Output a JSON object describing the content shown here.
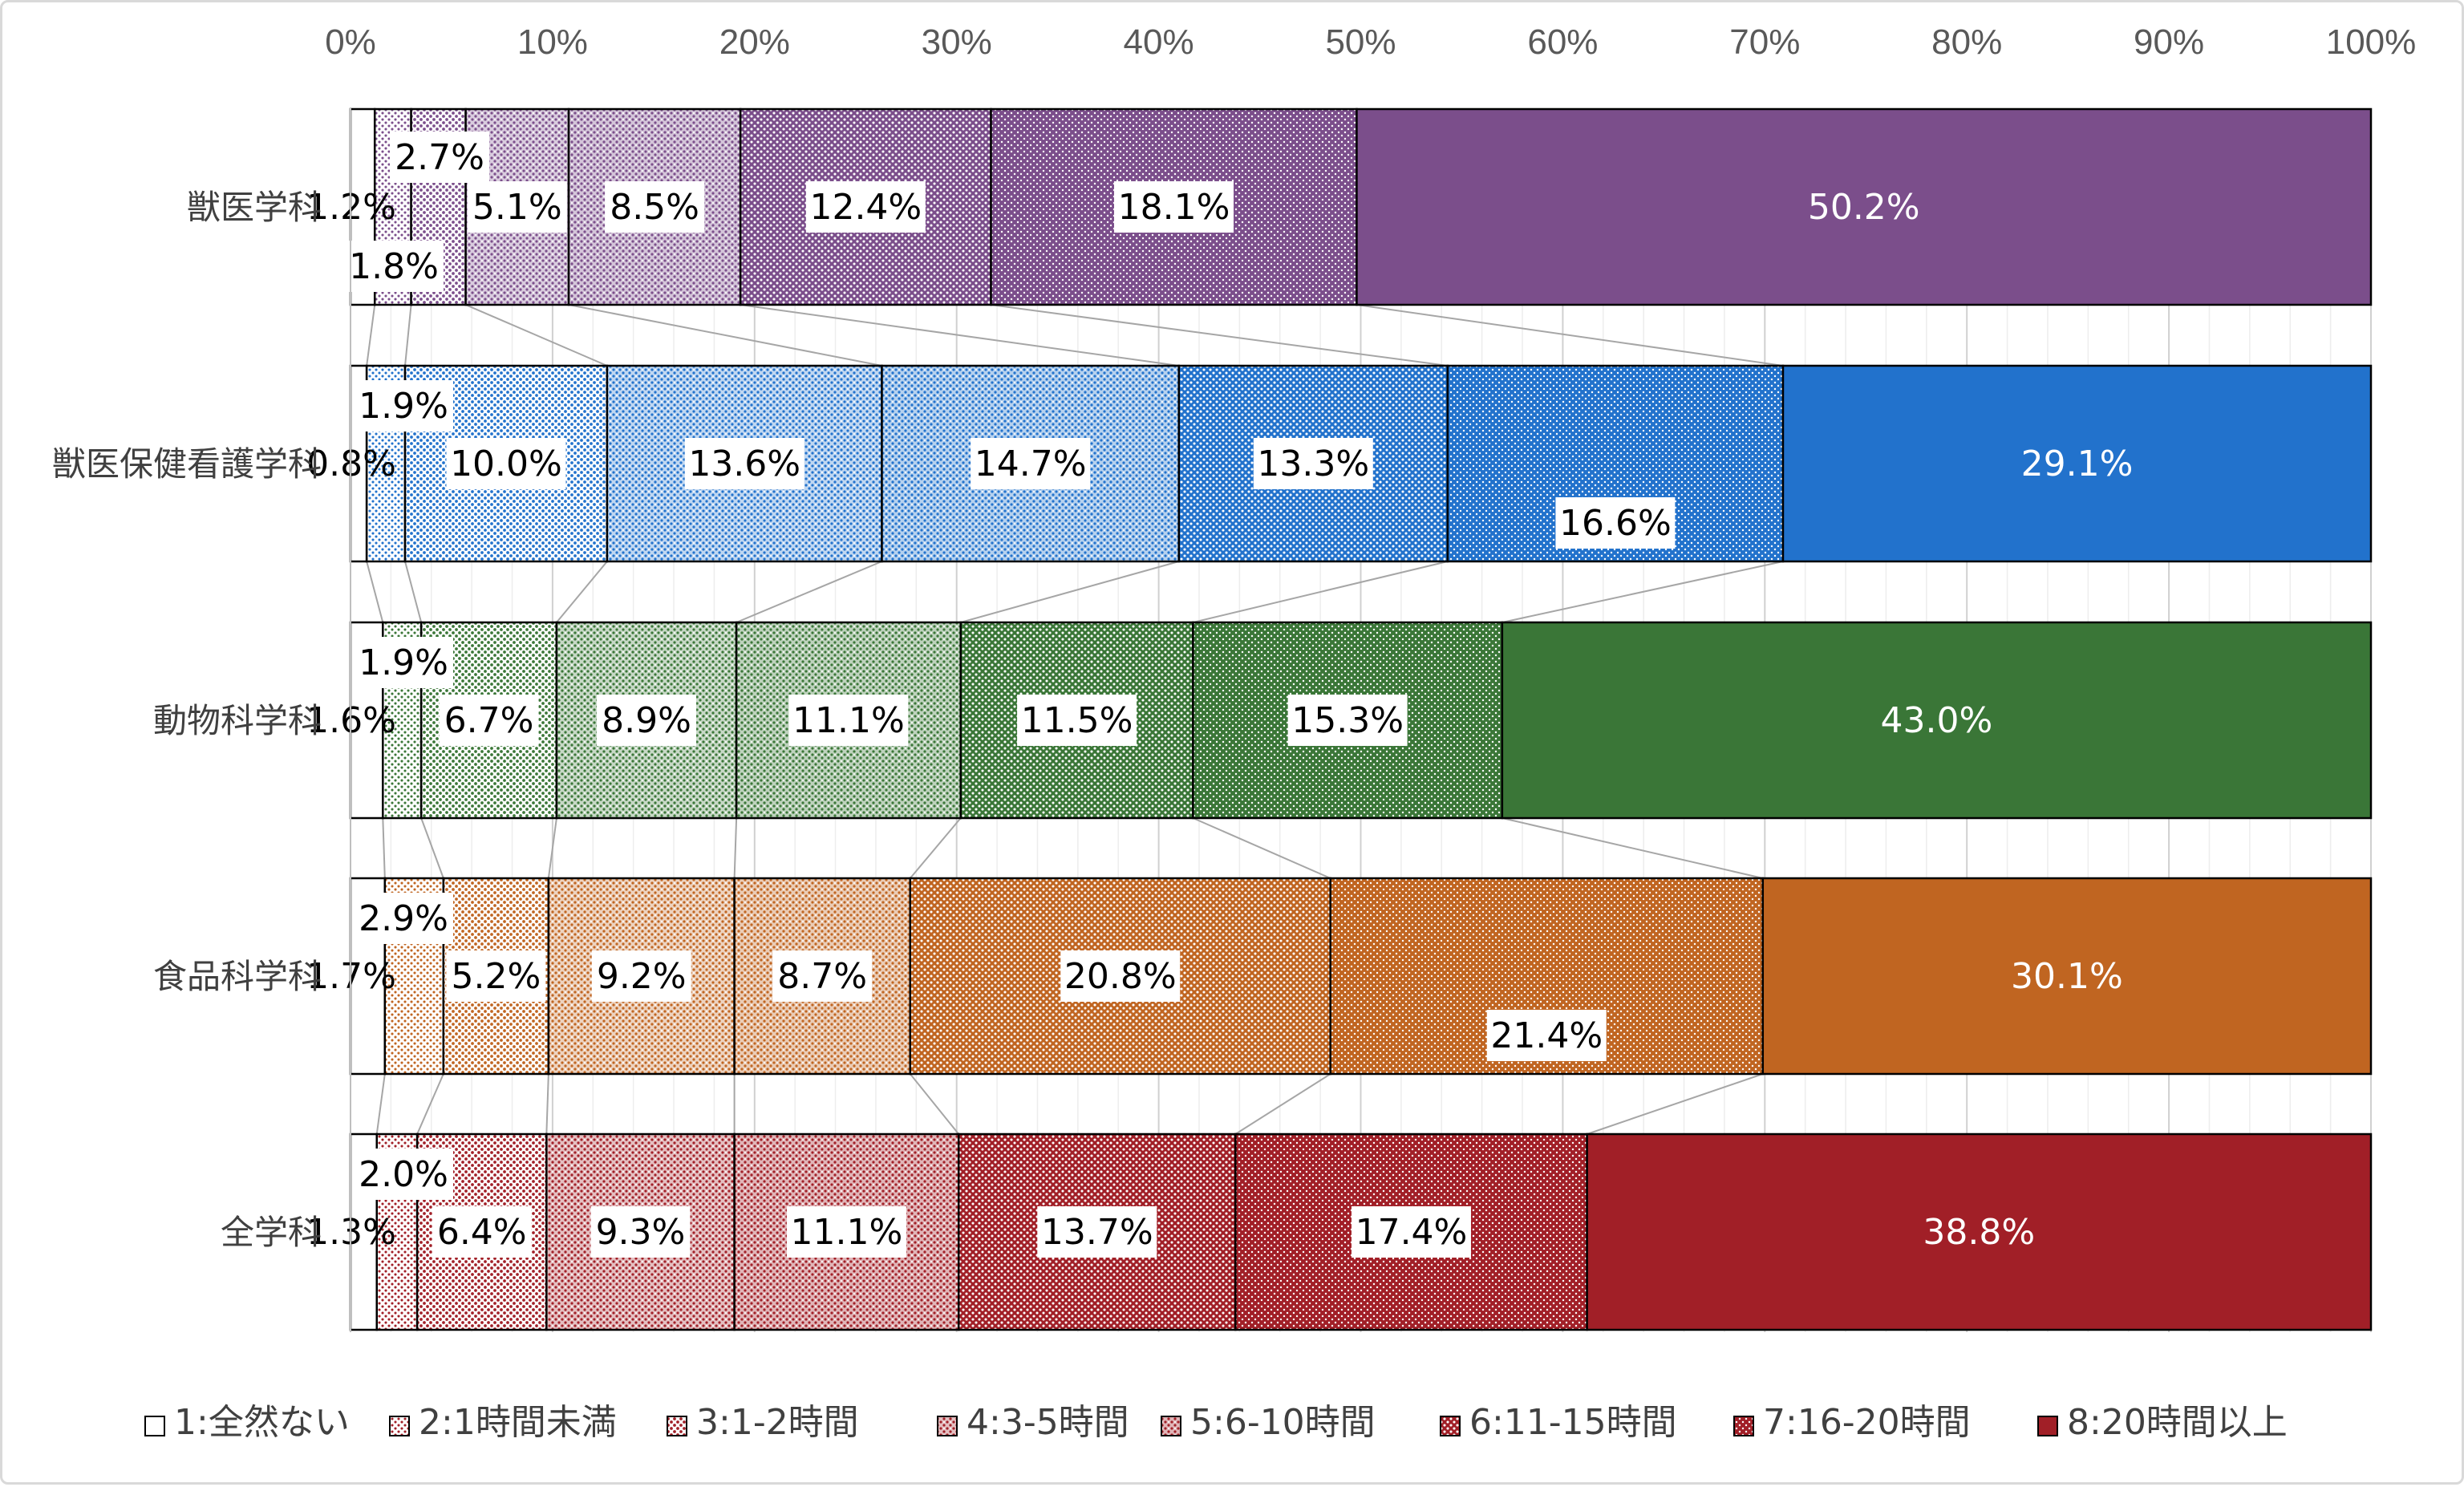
{
  "chart_data": {
    "type": "bar",
    "orientation": "horizontal",
    "stacked": "percent",
    "xlim": [
      0,
      100
    ],
    "x_ticks": [
      "0%",
      "10%",
      "20%",
      "30%",
      "40%",
      "50%",
      "60%",
      "70%",
      "80%",
      "90%",
      "100%"
    ],
    "categories": [
      "獣医学科",
      "獣医保健看護学科",
      "動物科学科",
      "食品科学科",
      "全学科"
    ],
    "series": [
      {
        "name": "1:全然ない",
        "values": [
          1.2,
          0.8,
          1.6,
          1.7,
          1.3
        ],
        "labels": [
          "1.2%",
          "0.8%",
          "1.6%",
          "1.7%",
          "1.3%"
        ]
      },
      {
        "name": "2:1時間未満",
        "values": [
          1.8,
          1.9,
          1.9,
          2.9,
          2.0
        ],
        "labels": [
          "1.8%",
          "1.9%",
          "1.9%",
          "2.9%",
          "2.0%"
        ]
      },
      {
        "name": "3:1-2時間",
        "values": [
          2.7,
          10.0,
          6.7,
          5.2,
          6.4
        ],
        "labels": [
          "2.7%",
          "10.0%",
          "6.7%",
          "5.2%",
          "6.4%"
        ]
      },
      {
        "name": "4:3-5時間",
        "values": [
          5.1,
          13.6,
          8.9,
          9.2,
          9.3
        ],
        "labels": [
          "5.1%",
          "13.6%",
          "8.9%",
          "9.2%",
          "9.3%"
        ]
      },
      {
        "name": "5:6-10時間",
        "values": [
          8.5,
          14.7,
          11.1,
          8.7,
          11.1
        ],
        "labels": [
          "8.5%",
          "14.7%",
          "11.1%",
          "8.7%",
          "11.1%"
        ]
      },
      {
        "name": "6:11-15時間",
        "values": [
          12.4,
          13.3,
          11.5,
          20.8,
          13.7
        ],
        "labels": [
          "12.4%",
          "13.3%",
          "11.5%",
          "20.8%",
          "13.7%"
        ]
      },
      {
        "name": "7:16-20時間",
        "values": [
          18.1,
          16.6,
          15.3,
          21.4,
          17.4
        ],
        "labels": [
          "18.1%",
          "16.6%",
          "15.3%",
          "21.4%",
          "17.4%"
        ]
      },
      {
        "name": "8:20時間以上",
        "values": [
          50.2,
          29.1,
          43.0,
          30.1,
          38.8
        ],
        "labels": [
          "50.2%",
          "29.1%",
          "43.0%",
          "30.1%",
          "38.8%"
        ]
      }
    ],
    "category_colors": [
      "#7b4e8b",
      "#2272cc",
      "#3a7637",
      "#c06521",
      "#a11f27"
    ],
    "gridlines": true,
    "series_lines": true,
    "legend_position": "bottom"
  }
}
